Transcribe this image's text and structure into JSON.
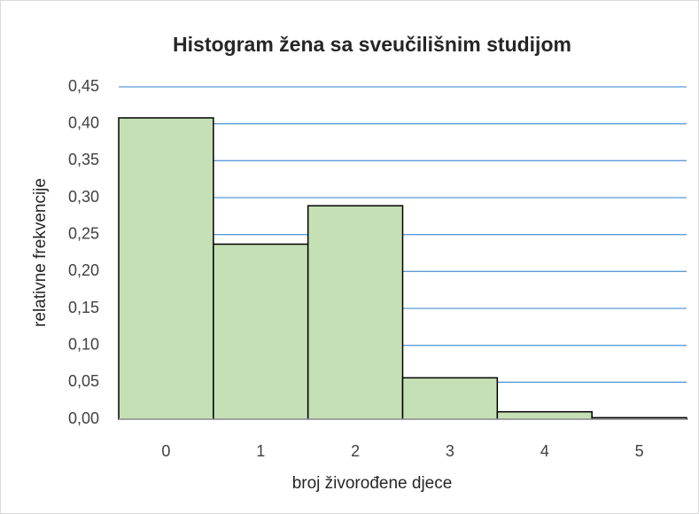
{
  "chart_data": {
    "type": "bar",
    "title": "Histogram žena sa sveučilišnim studijom",
    "x_label": "broj živorođene djece",
    "y_label": "relativne frekvencije",
    "categories": [
      "0",
      "1",
      "2",
      "3",
      "4",
      "5"
    ],
    "values": [
      0.408,
      0.237,
      0.289,
      0.056,
      0.01,
      0.002
    ],
    "color": "#c5e0b4",
    "ylim": [
      0,
      0.45
    ],
    "yticks": [
      {
        "value": 0,
        "label": "0,00"
      },
      {
        "value": 0.05,
        "label": "0,05"
      },
      {
        "value": 0.1,
        "label": "0,10"
      },
      {
        "value": 0.15,
        "label": "0,15"
      },
      {
        "value": 0.2,
        "label": "0,20"
      },
      {
        "value": 0.25,
        "label": "0,25"
      },
      {
        "value": 0.3,
        "label": "0,30"
      },
      {
        "value": 0.35,
        "label": "0,35"
      },
      {
        "value": 0.4,
        "label": "0,40"
      },
      {
        "value": 0.45,
        "label": "0,45"
      }
    ],
    "grid": true,
    "grid_color": "#5b9bd5"
  }
}
